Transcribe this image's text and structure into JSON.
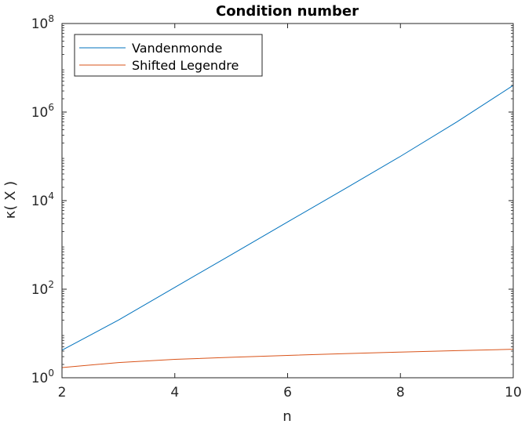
{
  "chart_data": {
    "type": "line",
    "title": "Condition number",
    "xlabel": "n",
    "ylabel": "κ( X )",
    "x_scale": "linear",
    "y_scale": "log",
    "xlim": [
      2,
      10
    ],
    "ylim": [
      1,
      100000000
    ],
    "x_ticks": [
      "2",
      "4",
      "6",
      "8",
      "10"
    ],
    "x_tick_values": [
      2,
      4,
      6,
      8,
      10
    ],
    "y_ticks": [
      {
        "value": 1,
        "base": "10",
        "exp": "0"
      },
      {
        "value": 100,
        "base": "10",
        "exp": "2"
      },
      {
        "value": 10000,
        "base": "10",
        "exp": "4"
      },
      {
        "value": 1000000,
        "base": "10",
        "exp": "6"
      },
      {
        "value": 100000000,
        "base": "10",
        "exp": "8"
      }
    ],
    "grid": false,
    "legend_position": "top-left",
    "x": [
      2,
      3,
      4,
      5,
      6,
      7,
      8,
      9,
      10
    ],
    "series": [
      {
        "name": "Vandenmonde",
        "color": "#0072BD",
        "values": [
          4.2,
          20,
          110,
          600,
          3300,
          18000,
          100000,
          600000,
          4000000
        ]
      },
      {
        "name": "Shifted Legendre",
        "color": "#D95319",
        "values": [
          1.7,
          2.2,
          2.6,
          2.9,
          3.2,
          3.5,
          3.8,
          4.1,
          4.4
        ]
      }
    ]
  }
}
